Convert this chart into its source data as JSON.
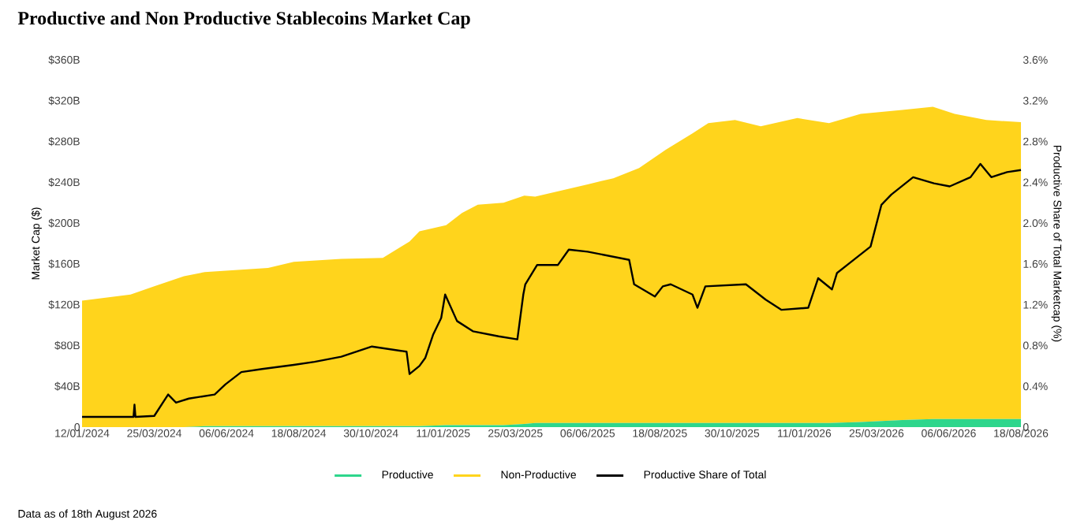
{
  "chart_data": {
    "type": "area",
    "stacked": true,
    "legend": "bottom",
    "title": "Productive and Non Productive Stablecoins Market Cap",
    "ylabel": "Market Cap ($)",
    "y2label": "Productive Share of Total Marketcap (%)",
    "annotations": [
      "Data as of 18th August 2026"
    ],
    "xlim": [
      "2024-01-12",
      "2026-08-18"
    ],
    "xticks": [
      {
        "value": "2024-01-12",
        "label": "12/01/2024"
      },
      {
        "value": "2024-03-25",
        "label": "25/03/2024"
      },
      {
        "value": "2024-06-06",
        "label": "06/06/2024"
      },
      {
        "value": "2024-08-18",
        "label": "18/08/2024"
      },
      {
        "value": "2024-10-30",
        "label": "30/10/2024"
      },
      {
        "value": "2025-01-11",
        "label": "11/01/2025"
      },
      {
        "value": "2025-03-25",
        "label": "25/03/2025"
      },
      {
        "value": "2025-06-06",
        "label": "06/06/2025"
      },
      {
        "value": "2025-08-18",
        "label": "18/08/2025"
      },
      {
        "value": "2025-10-30",
        "label": "30/10/2025"
      },
      {
        "value": "2026-01-11",
        "label": "11/01/2026"
      },
      {
        "value": "2026-03-25",
        "label": "25/03/2026"
      },
      {
        "value": "2026-06-06",
        "label": "06/06/2026"
      },
      {
        "value": "2026-08-18",
        "label": "18/08/2026"
      }
    ],
    "ylim": [
      0,
      360
    ],
    "yticks": [
      0,
      {
        "value": 40,
        "label": "$40B"
      },
      {
        "value": 80,
        "label": "$80B"
      },
      {
        "value": 120,
        "label": "$120B"
      },
      {
        "value": 160,
        "label": "$160B"
      },
      {
        "value": 200,
        "label": "$200B"
      },
      {
        "value": 240,
        "label": "$240B"
      },
      {
        "value": 280,
        "label": "$280B"
      },
      {
        "value": 320,
        "label": "$320B"
      },
      {
        "value": 360,
        "label": "$360B"
      }
    ],
    "y2lim": [
      0,
      3.6
    ],
    "y2ticks": [
      0,
      {
        "value": 0.4,
        "label": "0.4%"
      },
      {
        "value": 0.8,
        "label": "0.8%"
      },
      {
        "value": 1.2,
        "label": "1.2%"
      },
      {
        "value": 1.6,
        "label": "1.6%"
      },
      {
        "value": 2.0,
        "label": "2.0%"
      },
      {
        "value": 2.4,
        "label": "2.4%"
      },
      {
        "value": 2.8,
        "label": "2.8%"
      },
      {
        "value": 3.2,
        "label": "3.2%"
      },
      {
        "value": 3.6,
        "label": "3.6%"
      }
    ],
    "x": [
      "2024-01-12",
      "2024-03-01",
      "2024-03-25",
      "2024-04-24",
      "2024-05-15",
      "2024-07-18",
      "2024-08-13",
      "2024-09-30",
      "2024-11-11",
      "2024-12-08",
      "2024-12-18",
      "2025-01-14",
      "2025-01-30",
      "2025-02-15",
      "2025-03-13",
      "2025-04-03",
      "2025-04-14",
      "2025-06-06",
      "2025-07-02",
      "2025-07-28",
      "2025-08-24",
      "2025-09-20",
      "2025-10-06",
      "2025-11-02",
      "2025-11-28",
      "2026-01-04",
      "2026-02-05",
      "2026-03-09",
      "2026-04-20",
      "2026-05-21",
      "2026-06-12",
      "2026-07-14",
      "2026-08-18"
    ],
    "series": [
      {
        "name": "Productive",
        "color": "#2ed68c",
        "values": [
          0,
          0,
          0,
          0,
          1,
          1,
          1,
          1,
          1,
          1,
          1,
          2,
          2,
          2,
          2,
          3,
          4,
          4,
          4,
          4,
          4,
          4,
          4,
          4,
          4,
          4,
          4,
          5,
          7,
          8,
          8,
          8,
          8
        ]
      },
      {
        "name": "Non-Productive",
        "color": "#ffd41c",
        "values": [
          124,
          130,
          138,
          148,
          151,
          155,
          161,
          164,
          165,
          181,
          191,
          196,
          208,
          216,
          218,
          224,
          222,
          234,
          240,
          250,
          268,
          284,
          294,
          297,
          291,
          299,
          294,
          302,
          304,
          306,
          299,
          293,
          291
        ]
      },
      {
        "name": "Productive Share of Total",
        "type": "line",
        "axis": "y2",
        "color": "#000000",
        "x": [
          "2024-01-12",
          "2024-03-04",
          "2024-03-05",
          "2024-03-06",
          "2024-03-25",
          "2024-04-08",
          "2024-04-16",
          "2024-04-29",
          "2024-05-25",
          "2024-06-05",
          "2024-06-21",
          "2024-07-12",
          "2024-08-13",
          "2024-09-03",
          "2024-09-30",
          "2024-10-31",
          "2024-12-05",
          "2024-12-08",
          "2024-12-18",
          "2024-12-24",
          "2025-01-01",
          "2025-01-09",
          "2025-01-13",
          "2025-01-25",
          "2025-02-10",
          "2025-03-08",
          "2025-03-27",
          "2025-04-02",
          "2025-04-04",
          "2025-04-16",
          "2025-05-07",
          "2025-05-18",
          "2025-06-06",
          "2025-07-18",
          "2025-07-23",
          "2025-08-13",
          "2025-08-21",
          "2025-08-29",
          "2025-09-20",
          "2025-09-25",
          "2025-10-03",
          "2025-11-13",
          "2025-12-03",
          "2025-12-19",
          "2026-01-15",
          "2026-01-25",
          "2026-02-08",
          "2026-02-13",
          "2026-02-26",
          "2026-03-19",
          "2026-03-30",
          "2026-04-09",
          "2026-05-01",
          "2026-05-22",
          "2026-06-07",
          "2026-06-28",
          "2026-07-08",
          "2026-07-19",
          "2026-08-04",
          "2026-08-18"
        ],
        "values": [
          0.1,
          0.1,
          0.22,
          0.1,
          0.11,
          0.32,
          0.24,
          0.28,
          0.32,
          0.42,
          0.54,
          0.57,
          0.61,
          0.64,
          0.69,
          0.79,
          0.74,
          0.52,
          0.6,
          0.68,
          0.91,
          1.07,
          1.3,
          1.04,
          0.94,
          0.89,
          0.86,
          1.3,
          1.4,
          1.59,
          1.59,
          1.74,
          1.72,
          1.64,
          1.4,
          1.28,
          1.38,
          1.4,
          1.3,
          1.17,
          1.38,
          1.4,
          1.25,
          1.15,
          1.17,
          1.46,
          1.35,
          1.51,
          1.61,
          1.77,
          2.18,
          2.28,
          2.45,
          2.39,
          2.36,
          2.45,
          2.58,
          2.45,
          2.5,
          2.52
        ]
      }
    ]
  }
}
